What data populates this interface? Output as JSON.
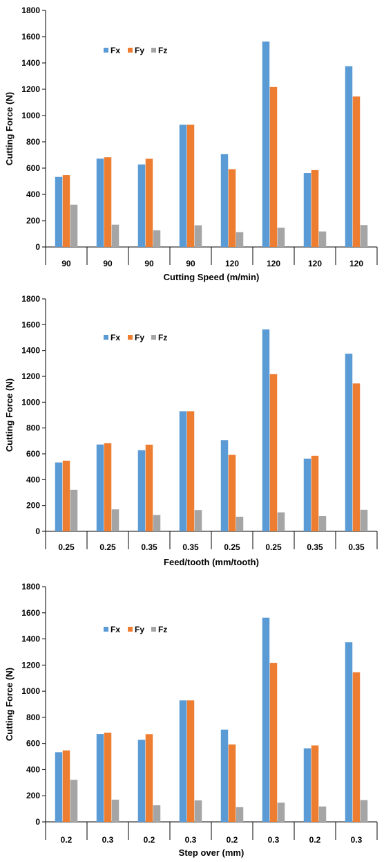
{
  "chart_data": [
    {
      "type": "bar",
      "categories": [
        "90",
        "90",
        "90",
        "90",
        "120",
        "120",
        "120",
        "120"
      ],
      "series": [
        {
          "name": "Fx",
          "values": [
            533,
            672,
            628,
            930,
            706,
            1563,
            563,
            1375
          ]
        },
        {
          "name": "Fy",
          "values": [
            547,
            683,
            671,
            930,
            592,
            1217,
            585,
            1145
          ]
        },
        {
          "name": "Fz",
          "values": [
            322,
            170,
            127,
            165,
            113,
            147,
            118,
            167
          ]
        }
      ],
      "colors": [
        "#5B9BD5",
        "#ED7D31",
        "#A5A5A5"
      ],
      "xlabel": "Cutting Speed (m/min)",
      "ylabel": "Cutting Force (N)",
      "yticks": [
        "0",
        "200",
        "400",
        "600",
        "800",
        "1000",
        "1200",
        "1400",
        "1600",
        "1800"
      ],
      "ylim": [
        0,
        1800
      ],
      "grid": false,
      "legend": "top-left"
    },
    {
      "type": "bar",
      "categories": [
        "0.25",
        "0.25",
        "0.35",
        "0.35",
        "0.25",
        "0.25",
        "0.35",
        "0.35"
      ],
      "series": [
        {
          "name": "Fx",
          "values": [
            533,
            672,
            628,
            930,
            706,
            1563,
            563,
            1375
          ]
        },
        {
          "name": "Fy",
          "values": [
            547,
            683,
            671,
            930,
            592,
            1217,
            585,
            1145
          ]
        },
        {
          "name": "Fz",
          "values": [
            322,
            170,
            127,
            165,
            113,
            147,
            118,
            167
          ]
        }
      ],
      "colors": [
        "#5B9BD5",
        "#ED7D31",
        "#A5A5A5"
      ],
      "xlabel": "Feed/tooth (mm/tooth)",
      "ylabel": "Cutting Force (N)",
      "yticks": [
        "0",
        "200",
        "400",
        "600",
        "800",
        "1000",
        "1200",
        "1400",
        "1600",
        "1800"
      ],
      "ylim": [
        0,
        1800
      ],
      "grid": false,
      "legend": "top-left"
    },
    {
      "type": "bar",
      "categories": [
        "0.2",
        "0.3",
        "0.2",
        "0.3",
        "0.2",
        "0.3",
        "0.2",
        "0.3"
      ],
      "series": [
        {
          "name": "Fx",
          "values": [
            533,
            672,
            628,
            930,
            706,
            1563,
            563,
            1375
          ]
        },
        {
          "name": "Fy",
          "values": [
            547,
            683,
            671,
            930,
            592,
            1217,
            585,
            1145
          ]
        },
        {
          "name": "Fz",
          "values": [
            322,
            170,
            127,
            165,
            113,
            147,
            118,
            167
          ]
        }
      ],
      "colors": [
        "#5B9BD5",
        "#ED7D31",
        "#A5A5A5"
      ],
      "xlabel": "Step over (mm)",
      "ylabel": "Cutting Force (N)",
      "yticks": [
        "0",
        "200",
        "400",
        "600",
        "800",
        "1000",
        "1200",
        "1400",
        "1600",
        "1800"
      ],
      "ylim": [
        0,
        1800
      ],
      "grid": false,
      "legend": "top-left"
    }
  ]
}
